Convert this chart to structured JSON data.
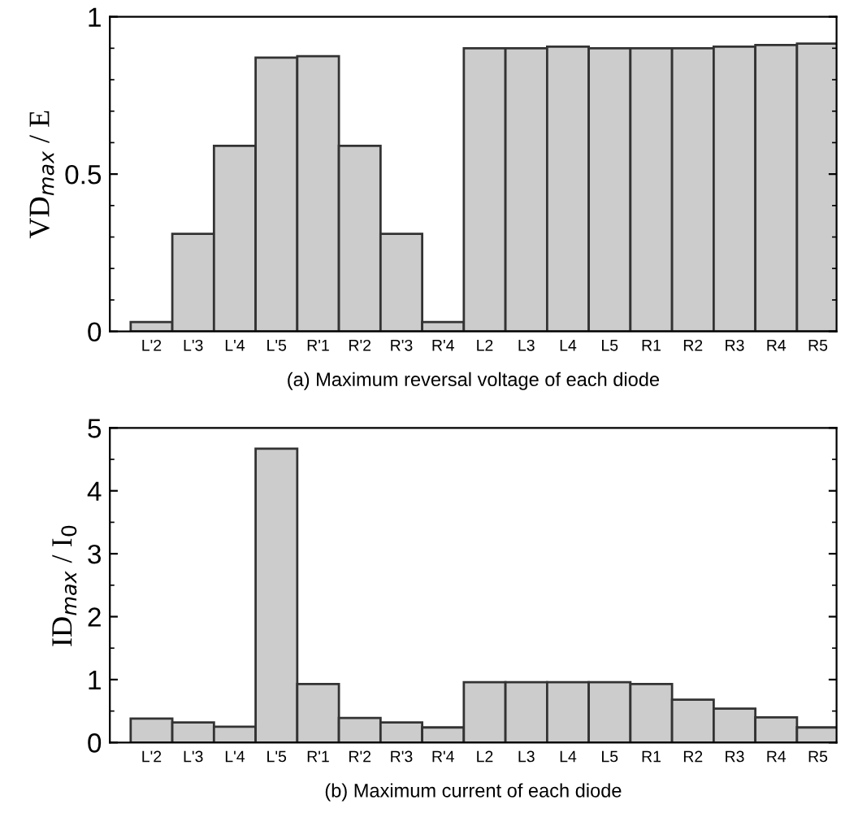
{
  "chart_data": [
    {
      "type": "bar",
      "xlabel": "(a) Maximum reversal voltage of each diode",
      "ylabel": "VD$_{max}$ / E",
      "categories": [
        "L'2",
        "L'3",
        "L'4",
        "L'5",
        "R'1",
        "R'2",
        "R'3",
        "R'4",
        "L2",
        "L3",
        "L4",
        "L5",
        "R1",
        "R2",
        "R3",
        "R4",
        "R5"
      ],
      "values": [
        0.03,
        0.31,
        0.59,
        0.87,
        0.875,
        0.59,
        0.31,
        0.03,
        0.9,
        0.9,
        0.905,
        0.9,
        0.9,
        0.9,
        0.905,
        0.91,
        0.915
      ],
      "color": "#cccccc",
      "ylim": [
        0,
        1
      ],
      "yticks": [
        0,
        0.5,
        1
      ],
      "grid": false,
      "legend": false
    },
    {
      "type": "bar",
      "xlabel": "(b) Maximum current of each diode",
      "ylabel": "ID$_{max}$ / I$_{0}$",
      "categories": [
        "L'2",
        "L'3",
        "L'4",
        "L'5",
        "R'1",
        "R'2",
        "R'3",
        "R'4",
        "L2",
        "L3",
        "L4",
        "L5",
        "R1",
        "R2",
        "R3",
        "R4",
        "R5"
      ],
      "values": [
        0.38,
        0.32,
        0.25,
        4.67,
        0.93,
        0.39,
        0.32,
        0.24,
        0.96,
        0.96,
        0.96,
        0.96,
        0.93,
        0.68,
        0.54,
        0.4,
        0.24
      ],
      "color": "#cccccc",
      "ylim": [
        0,
        5
      ],
      "yticks": [
        0,
        1,
        2,
        3,
        4,
        5
      ],
      "grid": false,
      "legend": false
    }
  ]
}
